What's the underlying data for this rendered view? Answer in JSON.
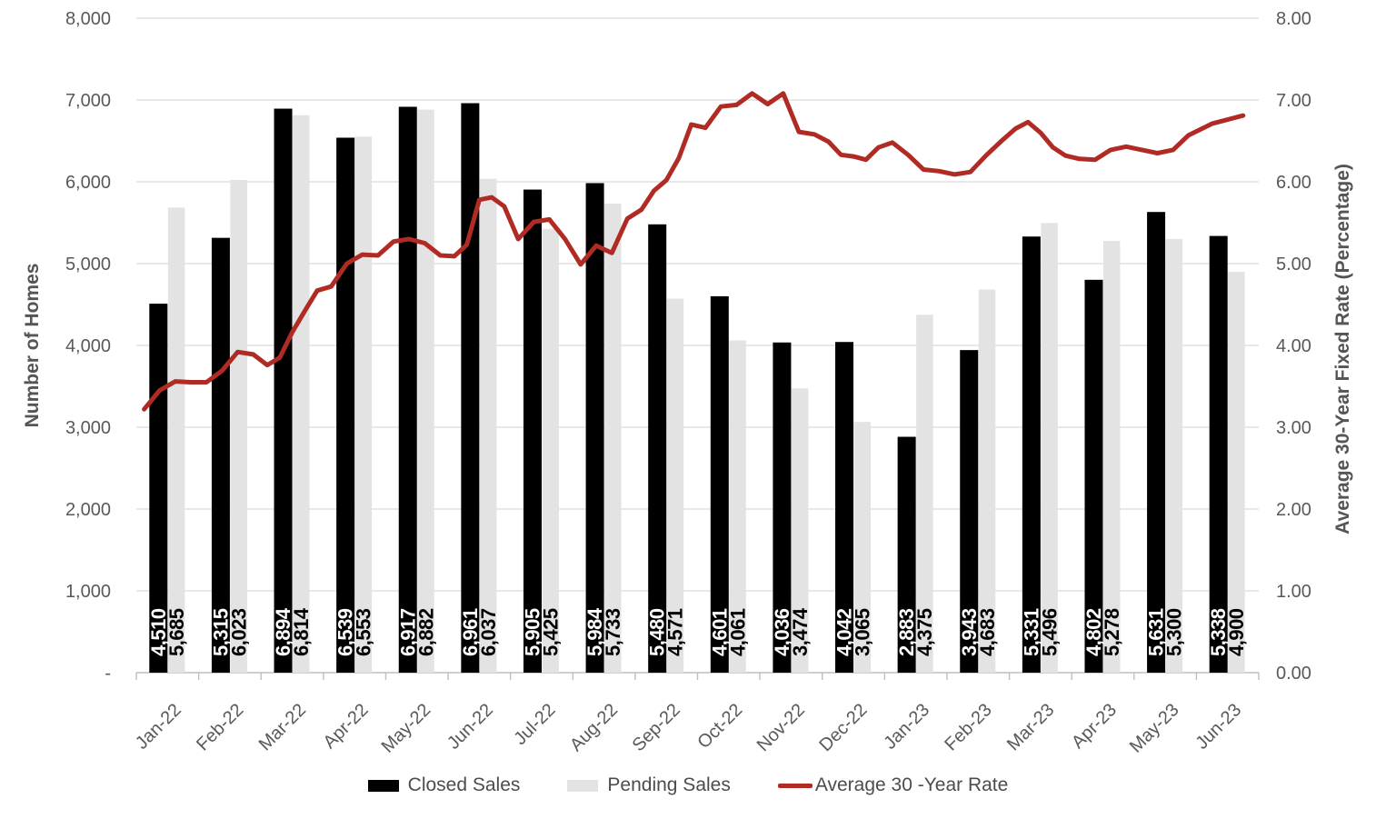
{
  "page": {
    "background": "#ffffff"
  },
  "chart_data": {
    "type": "combo-bar-line",
    "categories": [
      "Jan-22",
      "Feb-22",
      "Mar-22",
      "Apr-22",
      "May-22",
      "Jun-22",
      "Jul-22",
      "Aug-22",
      "Sep-22",
      "Oct-22",
      "Nov-22",
      "Dec-22",
      "Jan-23",
      "Feb-23",
      "Mar-23",
      "Apr-23",
      "May-23",
      "Jun-23"
    ],
    "series": [
      {
        "name": "Closed Sales",
        "type": "bar",
        "axis": "left",
        "color": "#000000",
        "label_color": "#ffffff",
        "values": [
          4510,
          5315,
          6894,
          6539,
          6917,
          6961,
          5905,
          5984,
          5480,
          4601,
          4036,
          4042,
          2883,
          3943,
          5331,
          4802,
          5631,
          5338
        ],
        "value_labels": [
          "4,510",
          "5,315",
          "6,894",
          "6,539",
          "6,917",
          "6,961",
          "5,905",
          "5,984",
          "5,480",
          "4,601",
          "4,036",
          "4,042",
          "2,883",
          "3,943",
          "5,331",
          "4,802",
          "5,631",
          "5,338"
        ]
      },
      {
        "name": "Pending Sales",
        "type": "bar",
        "axis": "left",
        "color": "#e3e3e3",
        "label_color": "#000000",
        "values": [
          5685,
          6023,
          6814,
          6553,
          6882,
          6037,
          5425,
          5733,
          4571,
          4061,
          3474,
          3065,
          4375,
          4683,
          5496,
          5278,
          5300,
          4900
        ],
        "value_labels": [
          "5,685",
          "6,023",
          "6,814",
          "6,553",
          "6,882",
          "6,037",
          "5,425",
          "5,733",
          "4,571",
          "4,061",
          "3,474",
          "3,065",
          "4,375",
          "4,683",
          "5,496",
          "5,278",
          "5,300",
          "4,900"
        ]
      },
      {
        "name": "Average 30 -Year Rate",
        "type": "line",
        "axis": "right",
        "color": "#b02b23",
        "weekly_values_by_month": [
          [
            3.22,
            3.45,
            3.56,
            3.55
          ],
          [
            3.55,
            3.69,
            3.92,
            3.89
          ],
          [
            3.76,
            3.85,
            4.16,
            4.42,
            4.67
          ],
          [
            4.72,
            5.0,
            5.11,
            5.1
          ],
          [
            5.27,
            5.3,
            5.25,
            5.1
          ],
          [
            5.09,
            5.23,
            5.78,
            5.81,
            5.7
          ],
          [
            5.3,
            5.51,
            5.54,
            5.3
          ],
          [
            4.99,
            5.22,
            5.13,
            5.55
          ],
          [
            5.66,
            5.89,
            6.02,
            6.29,
            6.7
          ],
          [
            6.66,
            6.92,
            6.94,
            7.08
          ],
          [
            6.95,
            7.08,
            6.61,
            6.58
          ],
          [
            6.49,
            6.33,
            6.31,
            6.27,
            6.42
          ],
          [
            6.48,
            6.33,
            6.15,
            6.13
          ],
          [
            6.09,
            6.12,
            6.32,
            6.5
          ],
          [
            6.65,
            6.73,
            6.6,
            6.42,
            6.32
          ],
          [
            6.28,
            6.27,
            6.39,
            6.43
          ],
          [
            6.39,
            6.35,
            6.39,
            6.57
          ],
          [
            6.71,
            6.81
          ]
        ]
      }
    ],
    "axes": {
      "left": {
        "title": "Number of Homes",
        "min": 0,
        "max": 8000,
        "step": 1000,
        "tick_labels": [
          "-",
          "1,000",
          "2,000",
          "3,000",
          "4,000",
          "5,000",
          "6,000",
          "7,000",
          "8,000"
        ]
      },
      "right": {
        "title": "Average 30-Year Fixed Rate (Percentage)",
        "min": 0,
        "max": 8,
        "step": 1,
        "tick_labels": [
          "0.00",
          "1.00",
          "2.00",
          "3.00",
          "4.00",
          "5.00",
          "6.00",
          "7.00",
          "8.00"
        ]
      }
    },
    "grid": {
      "horizontal": true,
      "color": "#d9d9d9",
      "axis_line_color": "#bfbfbf"
    },
    "legend": {
      "position": "bottom",
      "entries": [
        "Closed Sales",
        "Pending Sales",
        "Average 30 -Year Rate"
      ]
    },
    "styles": {
      "axis_text_color": "#595959",
      "legend_text_color": "#4c4c4c"
    }
  }
}
